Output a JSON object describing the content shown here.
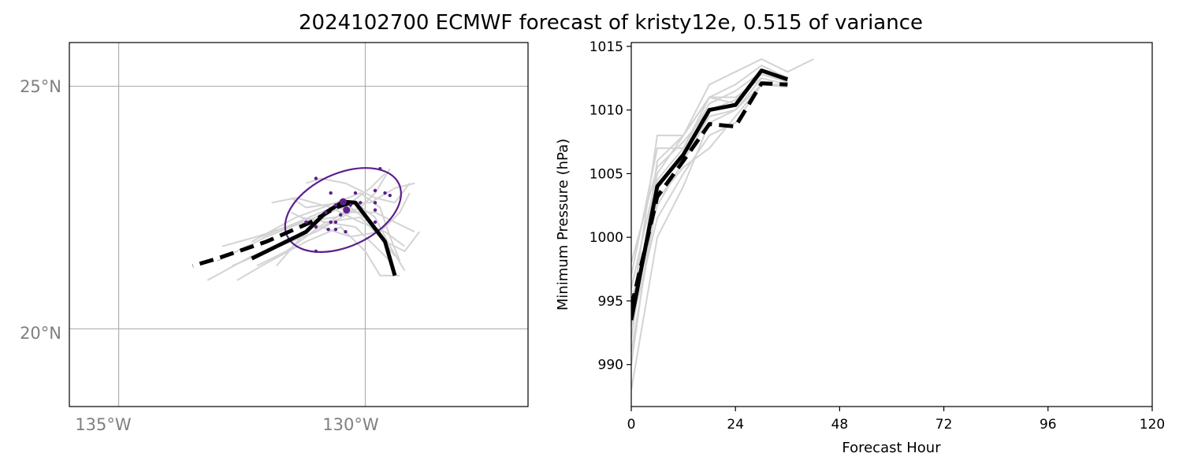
{
  "title": "2024102700 ECMWF forecast of kristy12e, 0.515 of variance",
  "colors": {
    "ensemble": "#d3d3d3",
    "ellipse": "#5b1f8c",
    "members": "#5b1f8c",
    "best": "#000000",
    "grid": "#b0b0b0",
    "map_tick": "#808080"
  },
  "chart_data": [
    {
      "type": "line",
      "panel": "track-map",
      "xlabel": "",
      "ylabel": "",
      "xlim": [
        -136,
        -126.7
      ],
      "ylim": [
        18.4,
        25.9
      ],
      "grid": true,
      "x_ticks": [
        -135,
        -130
      ],
      "x_tick_labels": [
        "135°W",
        "130°W"
      ],
      "y_ticks": [
        25,
        20
      ],
      "y_tick_labels": [
        "25°N",
        "20°N"
      ],
      "ensemble_tracks": [
        [
          [
            -129.4,
            21.1
          ],
          [
            -129.6,
            21.8
          ],
          [
            -129.9,
            22.2
          ],
          [
            -130.3,
            22.5
          ],
          [
            -131.0,
            22.0
          ],
          [
            -132.3,
            21.5
          ],
          [
            -133.2,
            21.0
          ]
        ],
        [
          [
            -129.2,
            21.2
          ],
          [
            -129.5,
            21.7
          ],
          [
            -129.8,
            22.3
          ],
          [
            -130.2,
            22.6
          ],
          [
            -131.0,
            22.3
          ],
          [
            -132.0,
            21.9
          ],
          [
            -133.0,
            21.4
          ]
        ],
        [
          [
            -129.0,
            22.0
          ],
          [
            -129.4,
            22.2
          ],
          [
            -129.8,
            22.4
          ],
          [
            -130.3,
            22.4
          ],
          [
            -131.0,
            22.0
          ],
          [
            -132.0,
            21.6
          ],
          [
            -132.7,
            21.3
          ]
        ],
        [
          [
            -129.3,
            21.1
          ],
          [
            -129.7,
            21.1
          ],
          [
            -130.0,
            21.6
          ],
          [
            -130.5,
            22.1
          ],
          [
            -131.2,
            21.8
          ],
          [
            -132.1,
            21.3
          ],
          [
            -132.6,
            21.0
          ]
        ],
        [
          [
            -128.9,
            22.0
          ],
          [
            -129.2,
            21.6
          ],
          [
            -129.6,
            21.8
          ],
          [
            -130.1,
            22.3
          ],
          [
            -130.8,
            22.2
          ],
          [
            -131.6,
            21.6
          ],
          [
            -132.2,
            21.3
          ]
        ],
        [
          [
            -129.5,
            23.3
          ],
          [
            -129.8,
            22.8
          ],
          [
            -130.1,
            22.5
          ],
          [
            -130.6,
            22.3
          ],
          [
            -131.3,
            22.2
          ],
          [
            -132.2,
            21.9
          ],
          [
            -132.9,
            21.7
          ]
        ],
        [
          [
            -129.0,
            23.0
          ],
          [
            -129.4,
            22.9
          ],
          [
            -129.9,
            22.6
          ],
          [
            -130.5,
            22.6
          ],
          [
            -131.2,
            22.5
          ],
          [
            -131.5,
            22.7
          ]
        ],
        [
          [
            -129.6,
            23.2
          ],
          [
            -129.9,
            22.9
          ],
          [
            -130.3,
            22.6
          ],
          [
            -130.9,
            22.4
          ],
          [
            -131.6,
            22.1
          ],
          [
            -132.1,
            21.9
          ]
        ],
        [
          [
            -129.1,
            23.0
          ],
          [
            -129.4,
            22.6
          ],
          [
            -129.8,
            22.7
          ],
          [
            -130.4,
            23.0
          ],
          [
            -130.9,
            23.1
          ],
          [
            -131.2,
            23.0
          ]
        ],
        [
          [
            -129.3,
            21.4
          ],
          [
            -129.5,
            21.9
          ],
          [
            -129.7,
            22.5
          ],
          [
            -130.1,
            22.8
          ],
          [
            -130.6,
            22.6
          ],
          [
            -131.4,
            22.3
          ],
          [
            -132.3,
            21.8
          ]
        ],
        [
          [
            -129.2,
            21.7
          ],
          [
            -129.6,
            22.0
          ],
          [
            -130.1,
            22.2
          ],
          [
            -130.7,
            22.5
          ],
          [
            -131.4,
            22.7
          ],
          [
            -131.9,
            22.6
          ]
        ],
        [
          [
            -129.4,
            21.5
          ],
          [
            -129.7,
            21.9
          ],
          [
            -130.1,
            22.4
          ],
          [
            -130.6,
            22.5
          ],
          [
            -131.2,
            22.0
          ],
          [
            -131.8,
            21.3
          ]
        ],
        [
          [
            -129.1,
            22.8
          ],
          [
            -129.3,
            22.4
          ],
          [
            -129.7,
            22.0
          ],
          [
            -130.3,
            21.9
          ],
          [
            -130.9,
            22.1
          ],
          [
            -131.5,
            22.4
          ]
        ],
        [
          [
            -129.5,
            21.4
          ],
          [
            -129.8,
            21.7
          ],
          [
            -130.2,
            22.1
          ],
          [
            -130.8,
            22.2
          ],
          [
            -131.3,
            22.3
          ]
        ]
      ],
      "ellipse": {
        "center": [
          -130.45,
          22.45
        ],
        "semi_axes_deg": [
          1.25,
          0.75
        ],
        "rotation_deg": -25
      },
      "member_points": [
        [
          -130.45,
          22.62
        ],
        [
          -130.3,
          22.55
        ],
        [
          -130.5,
          22.35
        ],
        [
          -130.4,
          22.45
        ],
        [
          -131.0,
          23.1
        ],
        [
          -129.7,
          23.3
        ],
        [
          -129.8,
          22.85
        ],
        [
          -129.8,
          22.6
        ],
        [
          -129.8,
          22.45
        ],
        [
          -129.6,
          22.8
        ],
        [
          -129.5,
          22.75
        ],
        [
          -130.1,
          22.6
        ],
        [
          -130.2,
          22.8
        ],
        [
          -130.7,
          22.8
        ],
        [
          -130.6,
          22.55
        ],
        [
          -130.8,
          22.4
        ],
        [
          -130.7,
          22.2
        ],
        [
          -130.75,
          22.05
        ],
        [
          -130.6,
          22.2
        ],
        [
          -130.6,
          22.05
        ],
        [
          -130.4,
          22.0
        ],
        [
          -131.2,
          22.2
        ],
        [
          -131.0,
          22.1
        ],
        [
          -131.0,
          21.6
        ],
        [
          -129.8,
          22.2
        ]
      ],
      "member_points_large": [
        [
          -130.45,
          22.62
        ],
        [
          -130.38,
          22.45
        ]
      ],
      "best_track_solid": [
        [
          -129.4,
          21.1
        ],
        [
          -129.6,
          21.8
        ],
        [
          -129.9,
          22.2
        ],
        [
          -130.2,
          22.6
        ],
        [
          -130.45,
          22.62
        ],
        [
          -130.8,
          22.4
        ],
        [
          -131.2,
          22.0
        ],
        [
          -132.0,
          21.6
        ],
        [
          -132.3,
          21.45
        ]
      ],
      "best_track_dashed": [
        [
          -130.3,
          22.6
        ],
        [
          -130.6,
          22.5
        ],
        [
          -131.1,
          22.2
        ],
        [
          -132.0,
          21.8
        ],
        [
          -133.0,
          21.45
        ],
        [
          -133.5,
          21.3
        ]
      ]
    },
    {
      "type": "line",
      "panel": "pressure",
      "xlabel": "Forecast Hour",
      "ylabel": "Minimum Pressure (hPa)",
      "xlim": [
        0,
        120
      ],
      "ylim": [
        986.7,
        1015.3
      ],
      "grid": false,
      "x_ticks": [
        0,
        24,
        48,
        72,
        96,
        120
      ],
      "y_ticks": [
        990,
        995,
        1000,
        1005,
        1010,
        1015
      ],
      "series": [
        {
          "role": "solid",
          "x": [
            0,
            6,
            12,
            18,
            24,
            30,
            36
          ],
          "values": [
            993.5,
            1004.0,
            1006.5,
            1010.0,
            1010.4,
            1013.1,
            1012.4
          ]
        },
        {
          "role": "dashed",
          "x": [
            0,
            6,
            12,
            18,
            24,
            30,
            36
          ],
          "values": [
            994.5,
            1003.2,
            1006.0,
            1008.9,
            1008.7,
            1012.1,
            1012.0
          ]
        }
      ],
      "ensemble": [
        {
          "x": [
            0,
            6,
            12,
            18,
            24,
            30,
            36,
            42
          ],
          "values": [
            996.0,
            1005.0,
            1008.0,
            1012.0,
            1013.0,
            1014.0,
            1013.0,
            1014.0
          ]
        },
        {
          "x": [
            0,
            6,
            12,
            18,
            24,
            30,
            36
          ],
          "values": [
            994.0,
            1008.0,
            1008.0,
            1011.0,
            1012.0,
            1013.5,
            1012.5
          ]
        },
        {
          "x": [
            0,
            6,
            12,
            18,
            24,
            30,
            36
          ],
          "values": [
            992.0,
            1006.0,
            1008.0,
            1011.0,
            1011.0,
            1012.5,
            1012.0
          ]
        },
        {
          "x": [
            0,
            6,
            12,
            18,
            24,
            30,
            36
          ],
          "values": [
            990.0,
            1004.5,
            1007.0,
            1010.5,
            1011.5,
            1013.0,
            1012.3
          ]
        },
        {
          "x": [
            0,
            6,
            12,
            18,
            24,
            30,
            36
          ],
          "values": [
            988.0,
            1000.0,
            1004.0,
            1009.0,
            1010.0,
            1012.0,
            1012.0
          ]
        },
        {
          "x": [
            0,
            6,
            12,
            18,
            24,
            30,
            36
          ],
          "values": [
            993.0,
            1001.5,
            1005.0,
            1008.0,
            1009.0,
            1012.0,
            1011.8
          ]
        },
        {
          "x": [
            0,
            6,
            12,
            18,
            24,
            30
          ],
          "values": [
            995.0,
            1002.5,
            1006.0,
            1009.5,
            1010.0,
            1012.5
          ]
        },
        {
          "x": [
            0,
            6,
            12,
            18,
            24,
            30,
            36
          ],
          "values": [
            997.0,
            1007.0,
            1007.0,
            1011.0,
            1010.5,
            1013.0,
            1012.6
          ]
        },
        {
          "x": [
            0,
            6,
            12,
            18,
            24,
            30
          ],
          "values": [
            991.0,
            1003.0,
            1005.5,
            1007.0,
            1009.5,
            1012.0
          ]
        },
        {
          "x": [
            0,
            6,
            12,
            18,
            24,
            30,
            36
          ],
          "values": [
            998.0,
            1005.5,
            1007.5,
            1010.0,
            1010.8,
            1012.8,
            1012.2
          ]
        }
      ]
    }
  ]
}
